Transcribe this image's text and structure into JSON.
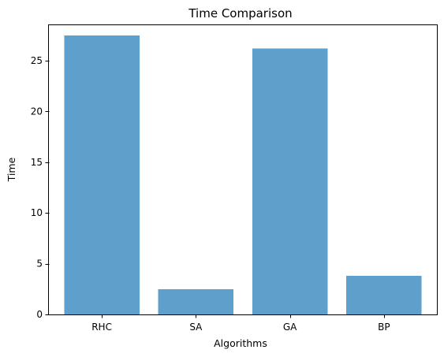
{
  "chart_data": {
    "type": "bar",
    "title": "Time Comparison",
    "xlabel": "Algorithms",
    "ylabel": "Time",
    "categories": [
      "RHC",
      "SA",
      "GA",
      "BP"
    ],
    "values": [
      27.5,
      2.5,
      26.2,
      3.8
    ],
    "ylim": [
      0,
      28.5
    ],
    "yticks": [
      0,
      5,
      10,
      15,
      20,
      25
    ],
    "ytick_labels": [
      "0",
      "5",
      "10",
      "15",
      "20",
      "25"
    ],
    "bar_color": "#5f9fcc",
    "grid": false
  }
}
